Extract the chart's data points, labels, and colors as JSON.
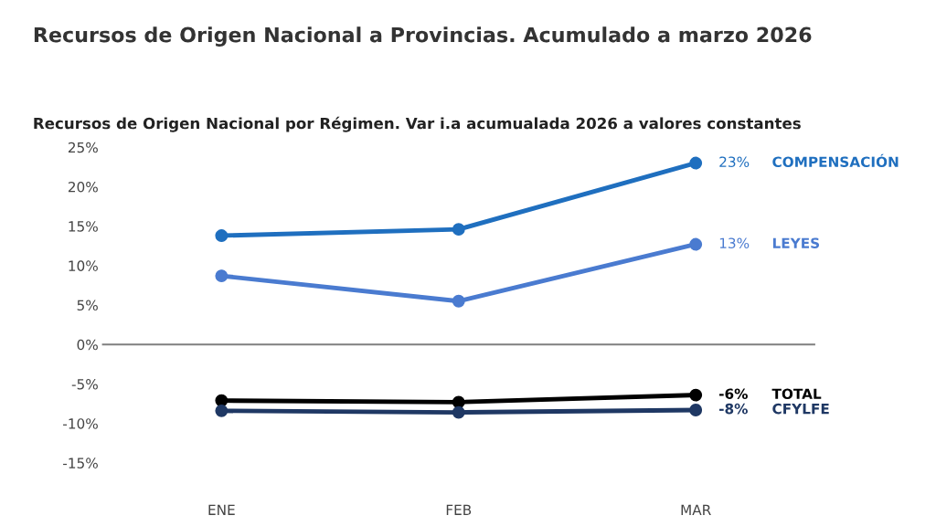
{
  "chart_data": {
    "type": "line",
    "title": "Recursos de Origen Nacional a Provincias. Acumulado a marzo 2026",
    "subtitle": "Recursos de Origen Nacional por Régimen. Var i.a acumualada 2026 a valores constantes",
    "categories": [
      "ENE",
      "FEB",
      "MAR"
    ],
    "series": [
      {
        "name": "COMPENSACIÓN",
        "color": "#1f6fbf",
        "values": [
          13.8,
          14.6,
          23.0
        ],
        "value_labels": [
          null,
          null,
          "23%"
        ]
      },
      {
        "name": "LEYES",
        "color": "#4a7bd0",
        "values": [
          8.7,
          5.5,
          12.7
        ],
        "value_labels": [
          null,
          null,
          "13%"
        ]
      },
      {
        "name": "TOTAL",
        "color": "#000000",
        "values": [
          -7.1,
          -7.3,
          -6.4
        ],
        "value_labels": [
          null,
          null,
          "-6%"
        ]
      },
      {
        "name": "CFYLFE",
        "color": "#1f3864",
        "values": [
          -8.4,
          -8.6,
          -8.3
        ],
        "value_labels": [
          null,
          null,
          "-8%"
        ]
      }
    ],
    "ylim": [
      -15,
      25
    ],
    "yticks": [
      {
        "value": -15,
        "label": "-15%"
      },
      {
        "value": -10,
        "label": "-10%"
      },
      {
        "value": -5,
        "label": "-5%"
      },
      {
        "value": 0,
        "label": "0%"
      },
      {
        "value": 5,
        "label": "5%"
      },
      {
        "value": 10,
        "label": "10%"
      },
      {
        "value": 15,
        "label": "15%"
      },
      {
        "value": 20,
        "label": "20%"
      },
      {
        "value": 25,
        "label": "25%"
      }
    ],
    "legend": false,
    "marker": "circle",
    "line_style": "solid"
  }
}
